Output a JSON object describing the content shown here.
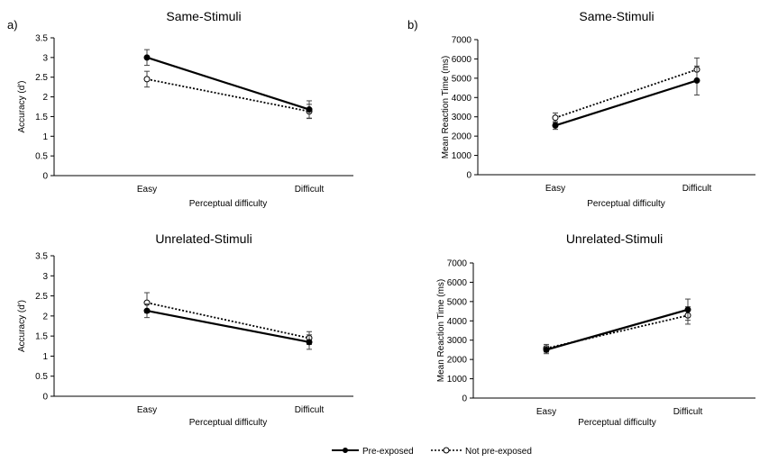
{
  "panel_labels": [
    "a)",
    "b)"
  ],
  "legend": {
    "series": [
      "Pre-exposed",
      "Not pre-exposed"
    ]
  },
  "chart_data": [
    {
      "type": "line",
      "title": "Same-Stimuli",
      "xlabel": "Perceptual difficulty",
      "ylabel": "Accuracy (d')",
      "categories": [
        "Easy",
        "Difficult"
      ],
      "ylim": [
        0,
        3.5
      ],
      "yticks": [
        "0",
        "0.5",
        "1",
        "1.5",
        "2",
        "2.5",
        "3",
        "3.5"
      ],
      "series": [
        {
          "name": "Pre-exposed",
          "values": [
            3.0,
            1.68
          ],
          "errors": [
            0.2,
            0.22
          ],
          "style": "solid"
        },
        {
          "name": "Not pre-exposed",
          "values": [
            2.45,
            1.63
          ],
          "errors": [
            0.2,
            0.18
          ],
          "style": "dotted"
        }
      ]
    },
    {
      "type": "line",
      "title": "Same-Stimuli",
      "xlabel": "Perceptual difficulty",
      "ylabel": "Mean Reaction Time (ms)",
      "categories": [
        "Easy",
        "Difficult"
      ],
      "ylim": [
        0,
        7000
      ],
      "yticks": [
        "0",
        "1000",
        "2000",
        "3000",
        "4000",
        "5000",
        "6000",
        "7000"
      ],
      "series": [
        {
          "name": "Pre-exposed",
          "values": [
            2550,
            4880
          ],
          "errors": [
            200,
            750
          ],
          "style": "solid"
        },
        {
          "name": "Not pre-exposed",
          "values": [
            2950,
            5450
          ],
          "errors": [
            250,
            600
          ],
          "style": "dotted"
        }
      ]
    },
    {
      "type": "line",
      "title": "Unrelated-Stimuli",
      "xlabel": "Perceptual difficulty",
      "ylabel": "Accuracy (d')",
      "categories": [
        "Easy",
        "Difficult"
      ],
      "ylim": [
        0,
        3.5
      ],
      "yticks": [
        "0",
        "0.5",
        "1",
        "1.5",
        "2",
        "2.5",
        "3",
        "3.5"
      ],
      "series": [
        {
          "name": "Pre-exposed",
          "values": [
            2.13,
            1.35
          ],
          "errors": [
            0.17,
            0.18
          ],
          "style": "solid"
        },
        {
          "name": "Not pre-exposed",
          "values": [
            2.33,
            1.45
          ],
          "errors": [
            0.25,
            0.16
          ],
          "style": "dotted"
        }
      ]
    },
    {
      "type": "line",
      "title": "Unrelated-Stimuli",
      "xlabel": "Perceptual difficulty",
      "ylabel": "Mean Reaction Time (ms)",
      "categories": [
        "Easy",
        "Difficult"
      ],
      "ylim": [
        0,
        7000
      ],
      "yticks": [
        "0",
        "1000",
        "2000",
        "3000",
        "4000",
        "5000",
        "6000",
        "7000"
      ],
      "series": [
        {
          "name": "Pre-exposed",
          "values": [
            2500,
            4580
          ],
          "errors": [
            200,
            550
          ],
          "style": "solid"
        },
        {
          "name": "Not pre-exposed",
          "values": [
            2580,
            4280
          ],
          "errors": [
            200,
            450
          ],
          "style": "dotted"
        }
      ]
    }
  ]
}
